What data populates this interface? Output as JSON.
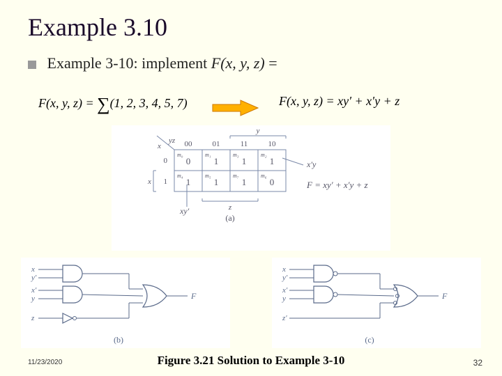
{
  "title": "Example 3.10",
  "bullet_text_pre": "Example 3-10: implement ",
  "bullet_func": "F",
  "bullet_args": "(x, y, z)",
  "bullet_eq": " =",
  "eq_left_pre": "F(x, y, z) = ",
  "eq_left_list": "(1, 2, 3, 4, 5, 7)",
  "eq_right": "F(x, y, z) = xy′ + x′y + z",
  "footer_date": "11/23/2020",
  "footer_caption": "Figure 3.21 Solution to Example 3-10",
  "page_num": "32",
  "kmap": {
    "type": "kmap",
    "col_header": "yz",
    "row_header": "x",
    "cols": [
      "00",
      "01",
      "11",
      "10"
    ],
    "rows": [
      "0",
      "1"
    ],
    "minterms": [
      [
        "m₀",
        "m₁",
        "m₃",
        "m₂"
      ],
      [
        "m₄",
        "m₅",
        "m₇",
        "m₆"
      ]
    ],
    "values": [
      [
        "0",
        "1",
        "1",
        "1"
      ],
      [
        "1",
        "1",
        "1",
        "0"
      ]
    ],
    "xlabel_right": "y",
    "zlabel_bottom": "z",
    "xlabel_left": "x",
    "group_labels": [
      "x′y",
      "xy′"
    ],
    "result": "F = xy′ + x′y + z",
    "sublabel": "(a)",
    "colors": {
      "grid": "#7a88a8",
      "text": "#555566",
      "bracket": "#7a88a8"
    }
  },
  "circuit_b": {
    "type": "logic-circuit",
    "inputs_g1": [
      "x",
      "y′"
    ],
    "inputs_g2": [
      "x′",
      "y"
    ],
    "inputs_g3": [
      "z"
    ],
    "output": "F",
    "sublabel": "(b)",
    "color": "#5a6a8a"
  },
  "circuit_c": {
    "type": "logic-circuit",
    "inputs_g1": [
      "x",
      "y′"
    ],
    "inputs_g2": [
      "x′",
      "y"
    ],
    "inputs_g3": [
      "z′"
    ],
    "output": "F",
    "sublabel": "(c)",
    "color": "#5a6a8a"
  },
  "arrow_color_fill": "#ffb000",
  "arrow_color_stroke": "#cc7700"
}
